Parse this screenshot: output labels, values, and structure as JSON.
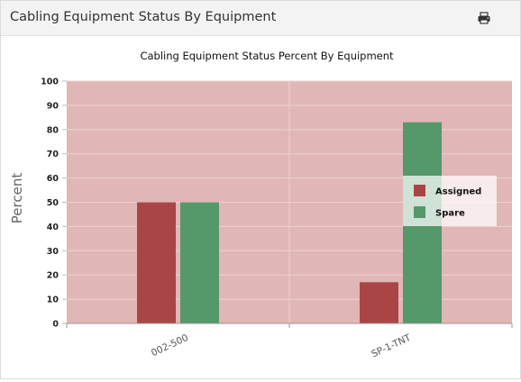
{
  "panel": {
    "title": "Cabling Equipment Status By Equipment",
    "print_icon": "printer-icon"
  },
  "chart_data": {
    "type": "bar",
    "title": "Cabling Equipment Status Percent By Equipment",
    "xlabel": "",
    "ylabel": "Percent",
    "ylim": [
      0,
      100
    ],
    "yticks": [
      0,
      10,
      20,
      30,
      40,
      50,
      60,
      70,
      80,
      90,
      100
    ],
    "categories": [
      "002-500",
      "SP-1-TNT"
    ],
    "series": [
      {
        "name": "Assigned",
        "values": [
          50,
          17
        ],
        "color": "#a94645"
      },
      {
        "name": "Spare",
        "values": [
          50,
          83
        ],
        "color": "#55986a"
      }
    ],
    "legend_position": "right",
    "plot_background": "#e1b6b6",
    "grid": true
  }
}
